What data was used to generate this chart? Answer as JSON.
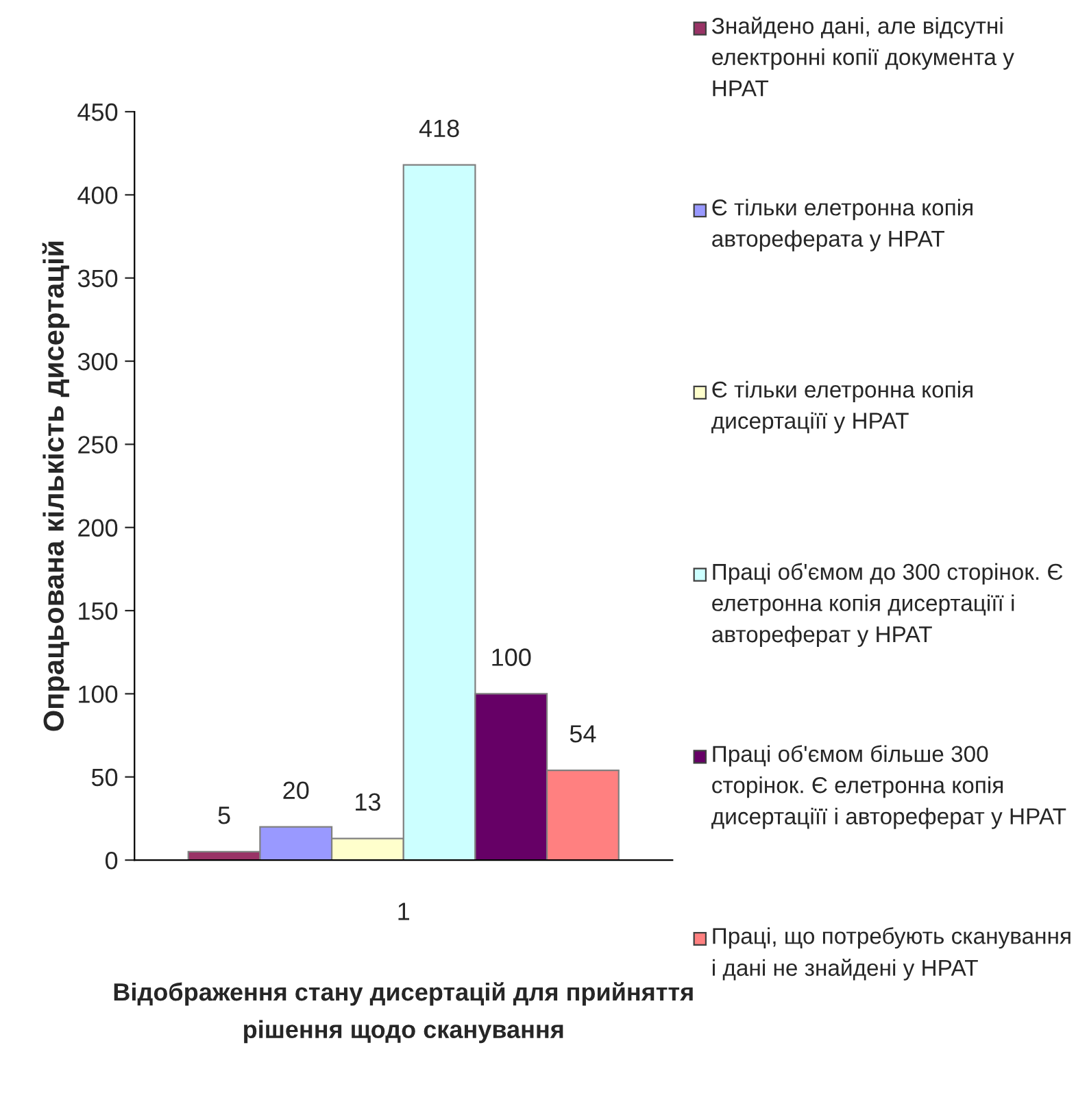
{
  "chart_data": {
    "type": "bar",
    "categories": [
      "1"
    ],
    "xlabel": "Відображення стану дисертацій для прийняття рішення щодо сканування",
    "ylabel": "Опрацьована кількість дисертацій",
    "series": [
      {
        "name": "Знайдено дані, але відсутні електронні копії документа у НРАТ",
        "color": "#993366",
        "values": [
          5
        ]
      },
      {
        "name": "Є тільки елетронна копія автореферата у НРАТ",
        "color": "#9999ff",
        "values": [
          20
        ]
      },
      {
        "name": "Є тільки елетронна копія дисертаціїї у НРАТ",
        "color": "#ffffcc",
        "values": [
          13
        ]
      },
      {
        "name": "Праці об'ємом до 300 сторінок. Є елетронна копія дисертаціїї і автореферат у НРАТ",
        "color": "#ccffff",
        "values": [
          418
        ]
      },
      {
        "name": "Праці об'ємом більше 300 сторінок. Є елетронна копія дисертаціїї і автореферат у НРАТ",
        "color": "#660066",
        "values": [
          100
        ]
      },
      {
        "name": "Праці, що потребують сканування і дані не знайдені у НРАТ",
        "color": "#ff8080",
        "values": [
          54
        ]
      }
    ],
    "ylim": [
      0,
      450
    ],
    "yticks": [
      0,
      50,
      100,
      150,
      200,
      250,
      300,
      350,
      400,
      450
    ],
    "data_labels": true,
    "legend": "right",
    "grid": false
  }
}
